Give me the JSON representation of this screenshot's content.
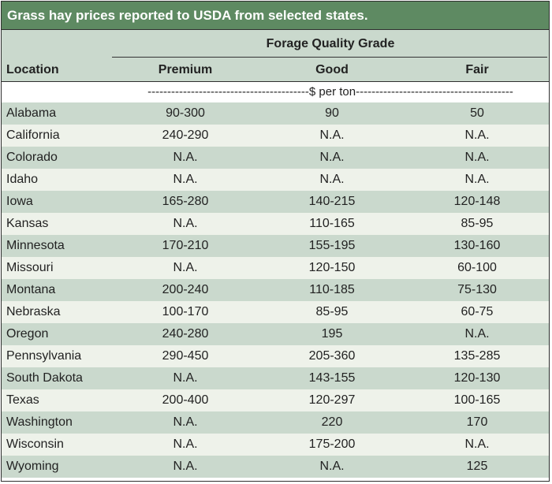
{
  "title": "Grass hay prices reported to USDA from selected states.",
  "header": {
    "group_label": "Forage Quality Grade",
    "location_label": "Location",
    "columns": [
      "Premium",
      "Good",
      "Fair"
    ]
  },
  "unit_row": "-----------------------------------------$ per ton----------------------------------------",
  "rows": [
    {
      "location": "Alabama",
      "premium": "90-300",
      "good": "90",
      "fair": "50"
    },
    {
      "location": "California",
      "premium": "240-290",
      "good": "N.A.",
      "fair": "N.A."
    },
    {
      "location": "Colorado",
      "premium": "N.A.",
      "good": "N.A.",
      "fair": "N.A."
    },
    {
      "location": "Idaho",
      "premium": "N.A.",
      "good": "N.A.",
      "fair": "N.A."
    },
    {
      "location": "Iowa",
      "premium": "165-280",
      "good": "140-215",
      "fair": "120-148"
    },
    {
      "location": "Kansas",
      "premium": "N.A.",
      "good": "110-165",
      "fair": "85-95"
    },
    {
      "location": "Minnesota",
      "premium": "170-210",
      "good": "155-195",
      "fair": "130-160"
    },
    {
      "location": "Missouri",
      "premium": "N.A.",
      "good": "120-150",
      "fair": "60-100"
    },
    {
      "location": "Montana",
      "premium": "200-240",
      "good": "110-185",
      "fair": "75-130"
    },
    {
      "location": "Nebraska",
      "premium": "100-170",
      "good": "85-95",
      "fair": "60-75"
    },
    {
      "location": "Oregon",
      "premium": "240-280",
      "good": "195",
      "fair": "N.A."
    },
    {
      "location": "Pennsylvania",
      "premium": "290-450",
      "good": "205-360",
      "fair": "135-285"
    },
    {
      "location": "South Dakota",
      "premium": "N.A.",
      "good": "143-155",
      "fair": "120-130"
    },
    {
      "location": "Texas",
      "premium": "200-400",
      "good": "120-297",
      "fair": "100-165"
    },
    {
      "location": "Washington",
      "premium": "N.A.",
      "good": "220",
      "fair": "170"
    },
    {
      "location": "Wisconsin",
      "premium": "N.A.",
      "good": "175-200",
      "fair": "N.A."
    },
    {
      "location": "Wyoming",
      "premium": "N.A.",
      "good": "N.A.",
      "fair": "125"
    }
  ]
}
